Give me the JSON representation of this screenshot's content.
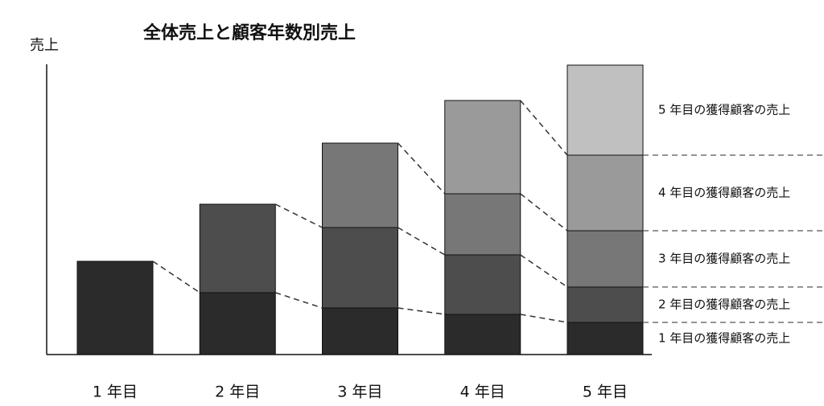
{
  "chart_data": {
    "type": "stacked_bar",
    "title": "全体売上と顧客年数別売上",
    "y_label": "売上",
    "categories": [
      "1 年目",
      "2 年目",
      "3 年目",
      "4 年目",
      "5 年目"
    ],
    "series": [
      {
        "name": "1 年目の獲得顧客の売上",
        "color": "#2b2b2b",
        "values": [
          116,
          77,
          58,
          50,
          40
        ]
      },
      {
        "name": "2 年目の獲得顧客の売上",
        "color": "#4d4d4d",
        "values": [
          null,
          110,
          100,
          74,
          44
        ]
      },
      {
        "name": "3 年目の獲得顧客の売上",
        "color": "#777777",
        "values": [
          null,
          null,
          105,
          76,
          70
        ]
      },
      {
        "name": "4 年目の獲得顧客の売上",
        "color": "#9a9a9a",
        "values": [
          null,
          null,
          null,
          116,
          94
        ]
      },
      {
        "name": "5 年目の獲得顧客の売上",
        "color": "#c0c0c0",
        "values": [
          null,
          null,
          null,
          null,
          112
        ]
      }
    ],
    "ylim": [
      0,
      380
    ]
  }
}
